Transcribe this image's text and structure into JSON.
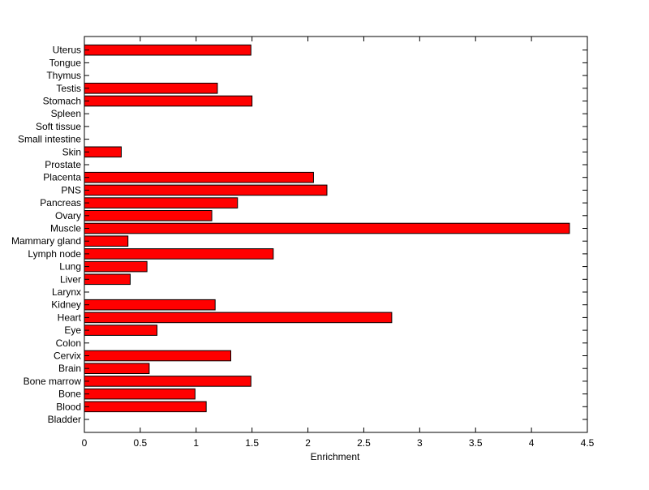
{
  "chart_data": {
    "type": "bar",
    "orientation": "horizontal",
    "categories": [
      "Bladder",
      "Blood",
      "Bone",
      "Bone marrow",
      "Brain",
      "Cervix",
      "Colon",
      "Eye",
      "Heart",
      "Kidney",
      "Larynx",
      "Liver",
      "Lung",
      "Lymph node",
      "Mammary gland",
      "Muscle",
      "Ovary",
      "Pancreas",
      "PNS",
      "Placenta",
      "Prostate",
      "Skin",
      "Small intestine",
      "Soft tissue",
      "Spleen",
      "Stomach",
      "Testis",
      "Thymus",
      "Tongue",
      "Uterus"
    ],
    "values": [
      0,
      1.09,
      0.99,
      1.49,
      0.58,
      1.31,
      0,
      0.65,
      2.75,
      1.17,
      0,
      0.41,
      0.56,
      1.69,
      0.39,
      4.34,
      1.14,
      1.37,
      2.17,
      2.05,
      0,
      0.33,
      0,
      0,
      0,
      1.5,
      1.19,
      0,
      0,
      1.49
    ],
    "xlabel": "Enrichment",
    "ylabel": "",
    "xlim": [
      0,
      4.5
    ],
    "xticks": [
      "0",
      "0.5",
      "1",
      "1.5",
      "2",
      "2.5",
      "3",
      "3.5",
      "4",
      "4.5"
    ],
    "grid": false,
    "colors": {
      "bar_fill": "#ff0000",
      "bar_edge": "#000000",
      "axes": "#000000",
      "background": "#ffffff"
    }
  }
}
